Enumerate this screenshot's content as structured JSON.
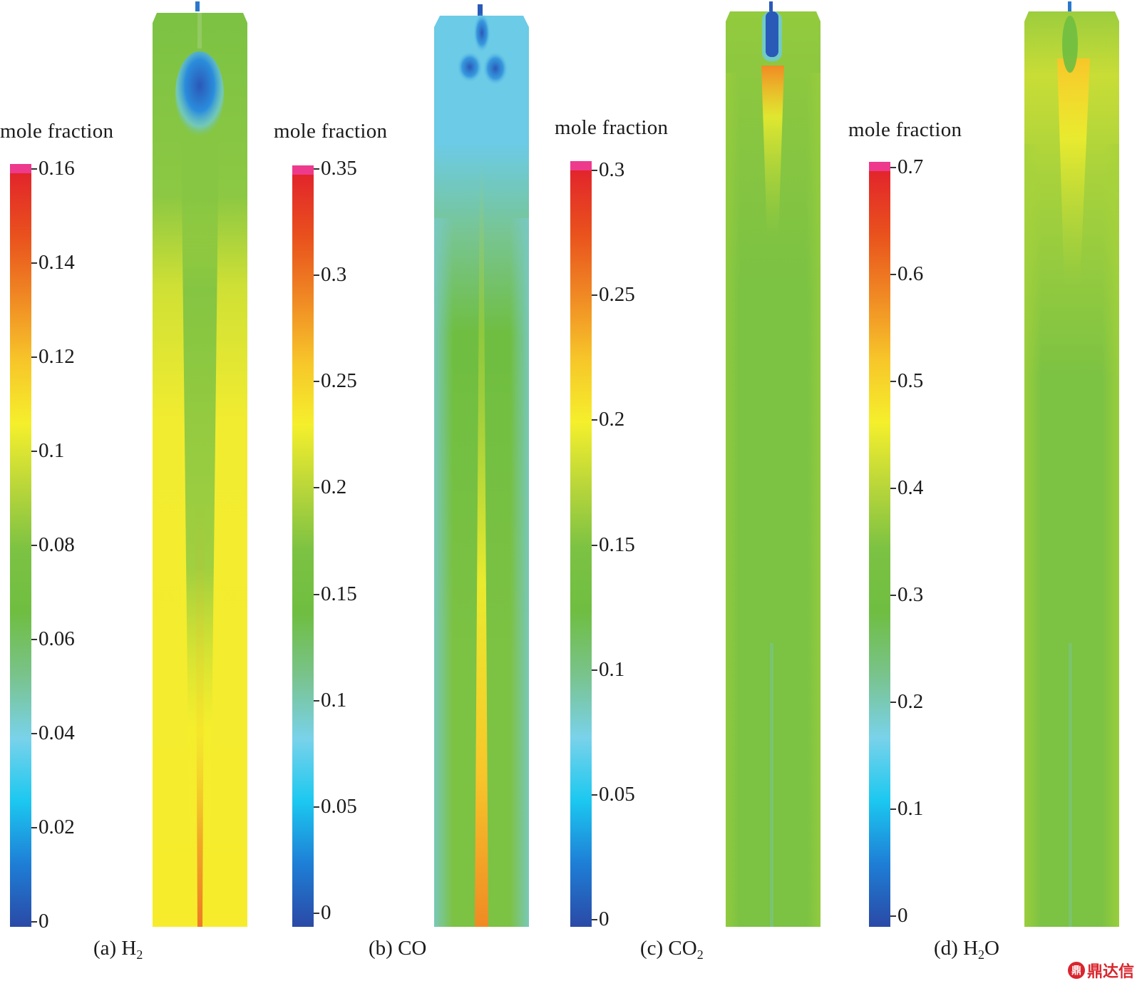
{
  "colormap": [
    "#2a4aa6",
    "#1e7ed6",
    "#1cc8f0",
    "#79d2ea",
    "#79c38c",
    "#6fbe41",
    "#7cc243",
    "#b9d63a",
    "#f5ef2c",
    "#f7c62a",
    "#f08a24",
    "#e9511d",
    "#e2252b"
  ],
  "overflow_color": "#ee3a8c",
  "panels": [
    {
      "id": "h2",
      "legend_title": "mole fraction",
      "caption_prefix": "(a) H",
      "caption_sub": "2",
      "caption_suffix": "",
      "scale_min": 0,
      "scale_max": 0.16,
      "ticks": [
        {
          "label": "0.16",
          "value": 0.16
        },
        {
          "label": "0.14",
          "value": 0.14
        },
        {
          "label": "0.12",
          "value": 0.12
        },
        {
          "label": "0.1",
          "value": 0.1
        },
        {
          "label": "0.08",
          "value": 0.08
        },
        {
          "label": "0.06",
          "value": 0.06
        },
        {
          "label": "0.04",
          "value": 0.04
        },
        {
          "label": "0.02",
          "value": 0.02
        },
        {
          "label": "0",
          "value": 0
        }
      ]
    },
    {
      "id": "co",
      "legend_title": "mole fraction",
      "caption_prefix": "(b) CO",
      "caption_sub": "",
      "caption_suffix": "",
      "scale_min": 0,
      "scale_max": 0.35,
      "ticks": [
        {
          "label": "0.35",
          "value": 0.35
        },
        {
          "label": "0.3",
          "value": 0.3
        },
        {
          "label": "0.25",
          "value": 0.25
        },
        {
          "label": "0.2",
          "value": 0.2
        },
        {
          "label": "0.15",
          "value": 0.15
        },
        {
          "label": "0.1",
          "value": 0.1
        },
        {
          "label": "0.05",
          "value": 0.05
        },
        {
          "label": "0",
          "value": 0
        }
      ]
    },
    {
      "id": "co2",
      "legend_title": "mole fraction",
      "caption_prefix": "(c) CO",
      "caption_sub": "2",
      "caption_suffix": "",
      "scale_min": 0,
      "scale_max": 0.3,
      "ticks": [
        {
          "label": "0.3",
          "value": 0.3
        },
        {
          "label": "0.25",
          "value": 0.25
        },
        {
          "label": "0.2",
          "value": 0.2
        },
        {
          "label": "0.15",
          "value": 0.15
        },
        {
          "label": "0.1",
          "value": 0.1
        },
        {
          "label": "0.05",
          "value": 0.05
        },
        {
          "label": "0",
          "value": 0
        }
      ]
    },
    {
      "id": "h2o",
      "legend_title": "mole fraction",
      "caption_prefix": "(d) H",
      "caption_sub": "2",
      "caption_suffix": "O",
      "scale_min": 0,
      "scale_max": 0.7,
      "ticks": [
        {
          "label": "0.7",
          "value": 0.7
        },
        {
          "label": "0.6",
          "value": 0.6
        },
        {
          "label": "0.5",
          "value": 0.5
        },
        {
          "label": "0.4",
          "value": 0.4
        },
        {
          "label": "0.3",
          "value": 0.3
        },
        {
          "label": "0.2",
          "value": 0.2
        },
        {
          "label": "0.1",
          "value": 0.1
        },
        {
          "label": "0",
          "value": 0
        }
      ]
    }
  ],
  "watermark": {
    "badge": "鼎",
    "text": "鼎达信"
  }
}
